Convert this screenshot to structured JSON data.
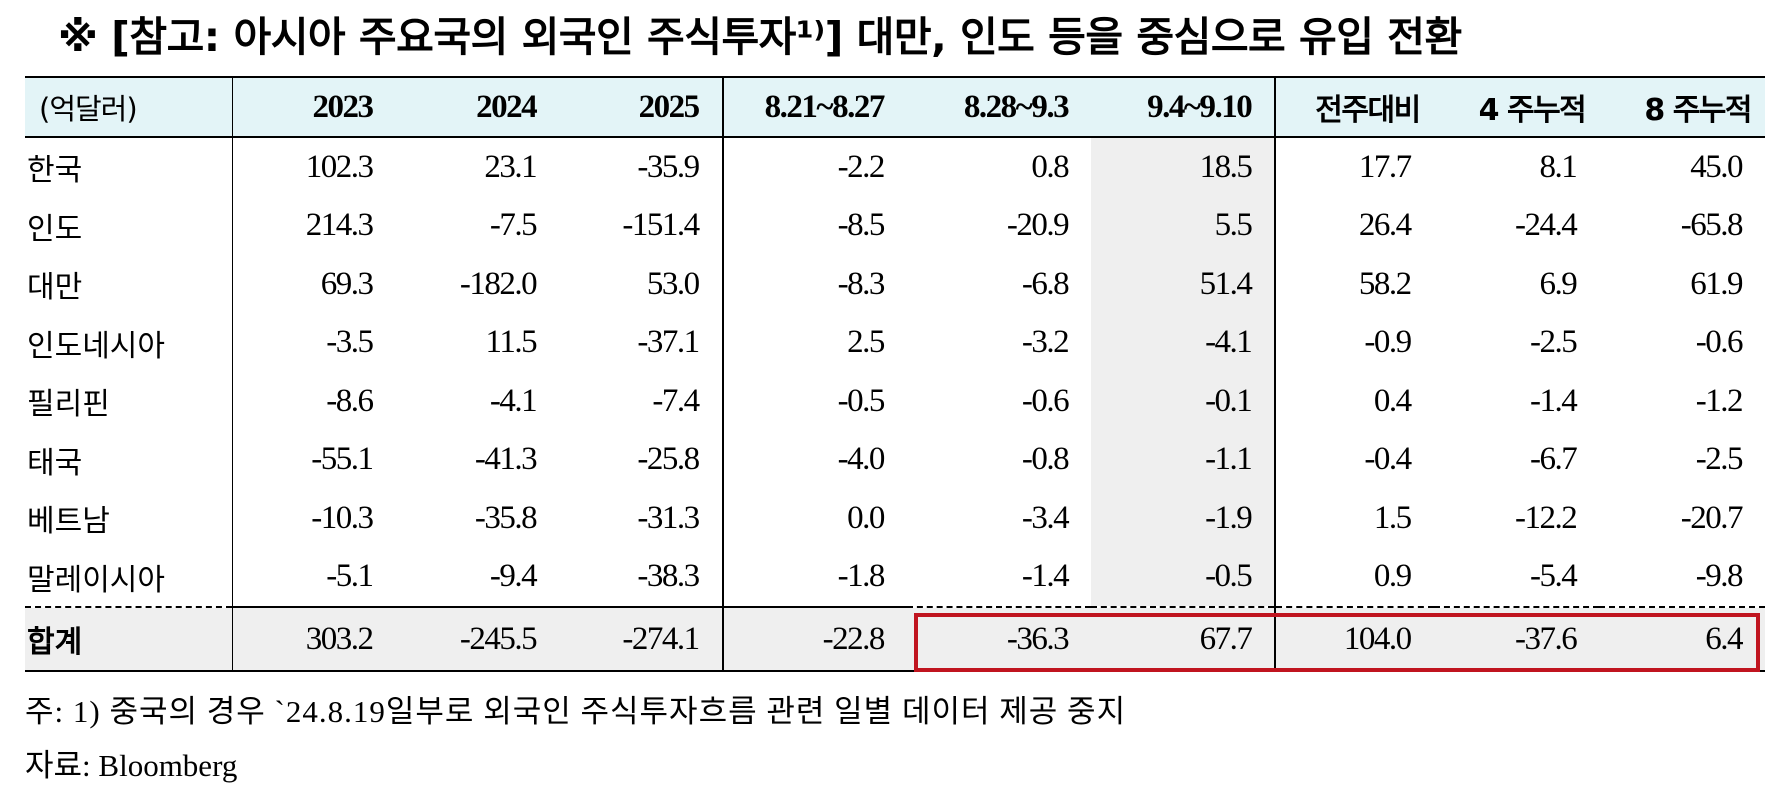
{
  "title": "※ [참고: 아시아 주요국의 외국인 주식투자¹⁾] 대만, 인도 등을 중심으로 유입 전환",
  "table": {
    "headers": [
      "(억달러)",
      "2023",
      "2024",
      "2025",
      "8.21~8.27",
      "8.28~9.3",
      "9.4~9.10",
      "전주대비",
      "4 주누적",
      "8 주누적"
    ],
    "rows": [
      {
        "name": "한국",
        "values": [
          "102.3",
          "23.1",
          "-35.9",
          "-2.2",
          "0.8",
          "18.5",
          "17.7",
          "8.1",
          "45.0"
        ]
      },
      {
        "name": "인도",
        "values": [
          "214.3",
          "-7.5",
          "-151.4",
          "-8.5",
          "-20.9",
          "5.5",
          "26.4",
          "-24.4",
          "-65.8"
        ]
      },
      {
        "name": "대만",
        "values": [
          "69.3",
          "-182.0",
          "53.0",
          "-8.3",
          "-6.8",
          "51.4",
          "58.2",
          "6.9",
          "61.9"
        ]
      },
      {
        "name": "인도네시아",
        "values": [
          "-3.5",
          "11.5",
          "-37.1",
          "2.5",
          "-3.2",
          "-4.1",
          "-0.9",
          "-2.5",
          "-0.6"
        ]
      },
      {
        "name": "필리핀",
        "values": [
          "-8.6",
          "-4.1",
          "-7.4",
          "-0.5",
          "-0.6",
          "-0.1",
          "0.4",
          "-1.4",
          "-1.2"
        ]
      },
      {
        "name": "태국",
        "values": [
          "-55.1",
          "-41.3",
          "-25.8",
          "-4.0",
          "-0.8",
          "-1.1",
          "-0.4",
          "-6.7",
          "-2.5"
        ]
      },
      {
        "name": "베트남",
        "values": [
          "-10.3",
          "-35.8",
          "-31.3",
          "0.0",
          "-3.4",
          "-1.9",
          "1.5",
          "-12.2",
          "-20.7"
        ]
      },
      {
        "name": "말레이시아",
        "values": [
          "-5.1",
          "-9.4",
          "-38.3",
          "-1.8",
          "-1.4",
          "-0.5",
          "0.9",
          "-5.4",
          "-9.8"
        ]
      }
    ],
    "total": {
      "name": "합계",
      "values": [
        "303.2",
        "-245.5",
        "-274.1",
        "-22.8",
        "-36.3",
        "67.7",
        "104.0",
        "-37.6",
        "6.4"
      ]
    }
  },
  "notes": {
    "note1": "주: 1) 중국의 경우 `24.8.19일부로 외국인 주식투자흐름 관련 일별 데이터 제공 중지",
    "source": "자료: Bloomberg"
  },
  "colors": {
    "header_bg": "#e3f4f7",
    "shade_bg": "#efefef",
    "highlight_border": "#c0141f"
  }
}
